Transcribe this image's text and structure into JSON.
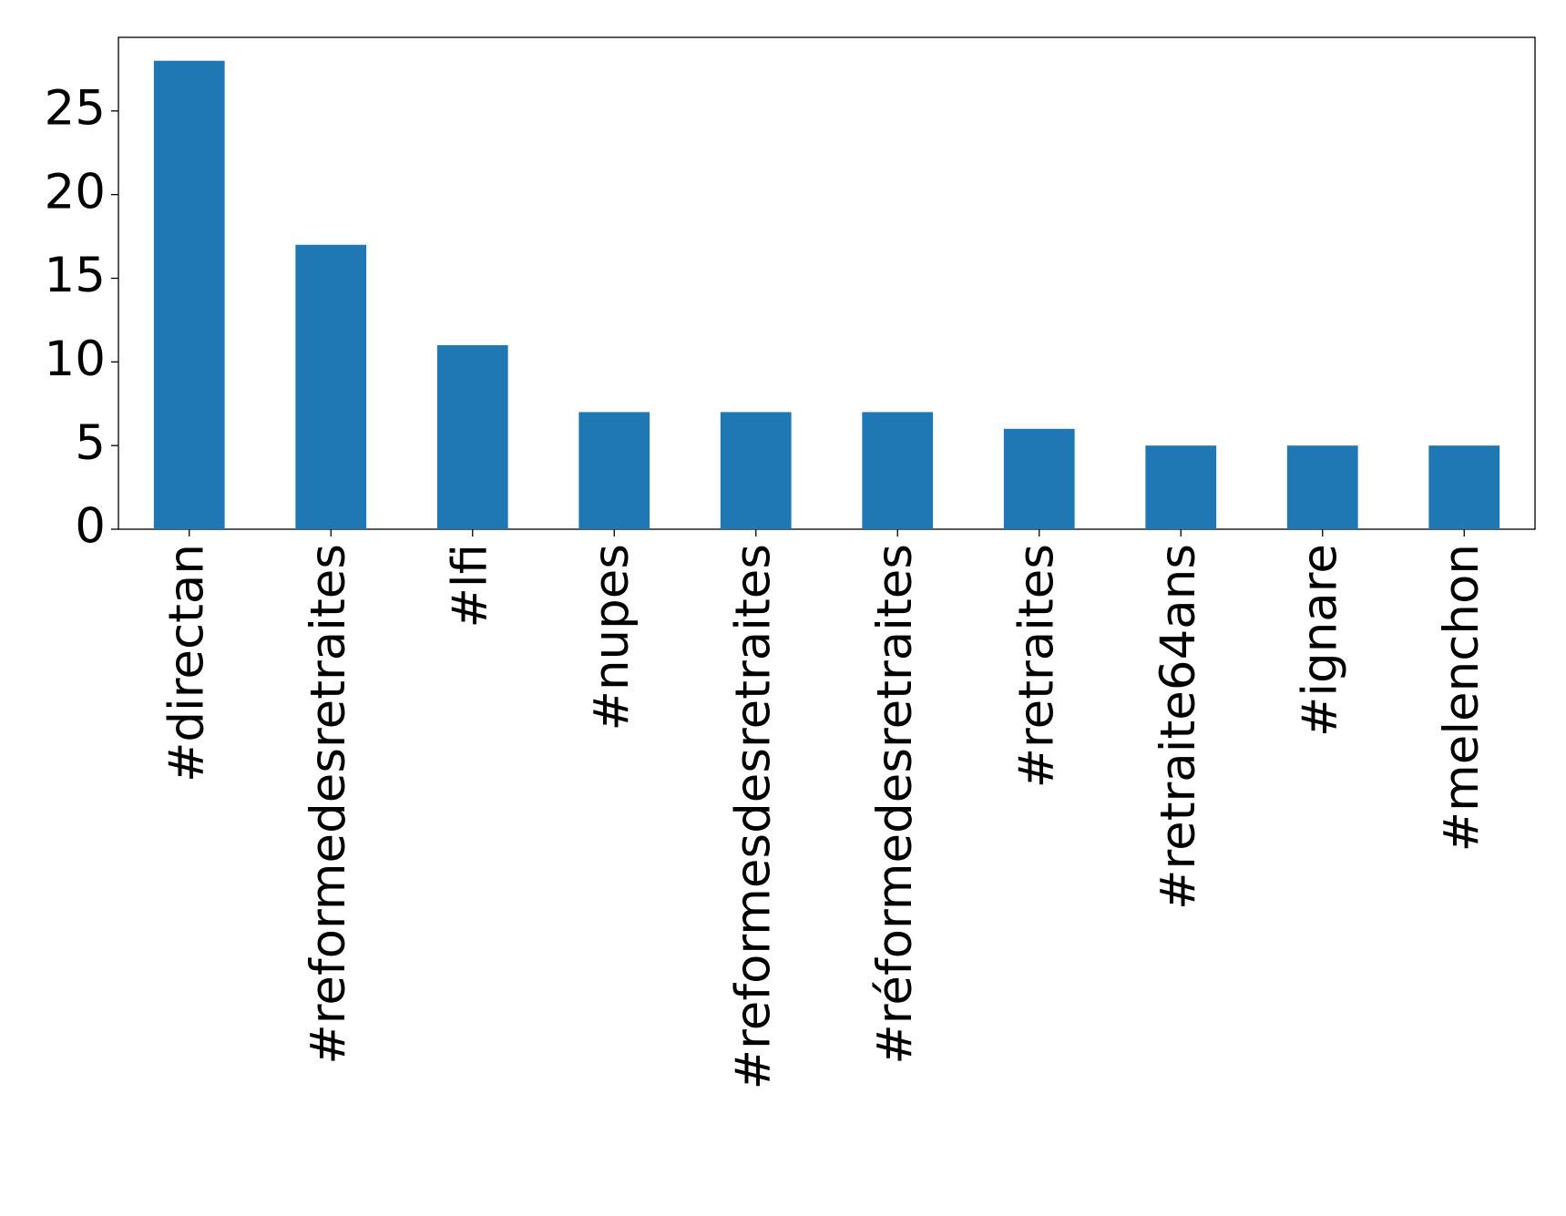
{
  "chart_data": {
    "type": "bar",
    "categories": [
      "#directan",
      "#reformedesretraites",
      "#lfi",
      "#nupes",
      "#reformesdesretraites",
      "#réformedesretraites",
      "#retraites",
      "#retraite64ans",
      "#ignare",
      "#melenchon"
    ],
    "values": [
      28,
      17,
      11,
      7,
      7,
      7,
      6,
      5,
      5,
      5
    ],
    "color": "#1f77b4",
    "ylim": [
      0,
      29.4
    ],
    "yticks": [
      0,
      5,
      10,
      15,
      20,
      25
    ],
    "grid": false
  }
}
